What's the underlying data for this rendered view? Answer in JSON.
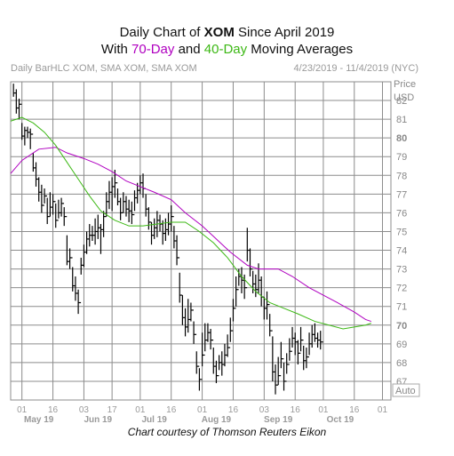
{
  "header": {
    "title_line1_prefix": "Daily Chart of ",
    "title_line1_ticker": "XOM",
    "title_line1_suffix": " Since April 2019",
    "title_line2_prefix": "With ",
    "title_line2_ma70": "70-Day",
    "title_line2_mid": " and ",
    "title_line2_ma40": "40-Day",
    "title_line2_suffix": " Moving Averages",
    "subtitle_left": "Daily BarHLC XOM, SMA XOM, SMA XOM",
    "subtitle_right": "4/23/2019 - 11/4/2019 (NYC)",
    "credit": "Chart courtesy of Thomson Reuters Eikon"
  },
  "colors": {
    "ma70": "#b000c0",
    "ma40": "#3cb814",
    "bars": "#000000",
    "grid": "#8c8c8c"
  },
  "chart_data": {
    "type": "line",
    "price_label": "Price",
    "currency_label": "USD",
    "auto_label": "Auto",
    "ylim": [
      66,
      83
    ],
    "y_ticks": [
      67,
      68,
      69,
      70,
      71,
      72,
      73,
      74,
      75,
      76,
      77,
      78,
      79,
      80,
      81,
      82
    ],
    "y_tick_bold": [
      80,
      70
    ],
    "x_day_ticks": [
      "01",
      "16",
      "03",
      "17",
      "01",
      "16",
      "01",
      "16",
      "03",
      "16",
      "01",
      "16",
      "01"
    ],
    "x_day_tick_positions": [
      4,
      15,
      26,
      36,
      46,
      57,
      68,
      79,
      90,
      101,
      111,
      122,
      132
    ],
    "x_month_labels": [
      "May 19",
      "Jun 19",
      "Jul 19",
      "Aug 19",
      "Sep 19",
      "Oct 19"
    ],
    "x_month_label_positions": [
      10,
      31,
      51,
      73,
      95,
      117
    ],
    "x_range": [
      0,
      135
    ],
    "ohlc_bars": [
      [
        82.2,
        82.9,
        82.4
      ],
      [
        81.3,
        82.6,
        81.6
      ],
      [
        81.0,
        82.1,
        81.8
      ],
      [
        79.9,
        80.8,
        80.1
      ],
      [
        79.6,
        80.6,
        80.4
      ],
      [
        80.0,
        80.6,
        80.3
      ],
      [
        79.4,
        80.5,
        80.2
      ],
      [
        78.2,
        79.2,
        78.4
      ],
      [
        77.4,
        78.7,
        77.8
      ],
      [
        76.6,
        77.9,
        77.1
      ],
      [
        76.0,
        77.5,
        76.4
      ],
      [
        76.5,
        77.3,
        76.9
      ],
      [
        75.4,
        76.8,
        75.8
      ],
      [
        75.8,
        77.1,
        76.3
      ],
      [
        75.9,
        77.0,
        76.6
      ],
      [
        75.2,
        76.5,
        75.6
      ],
      [
        75.7,
        76.7,
        76.0
      ],
      [
        75.8,
        76.8,
        76.5
      ],
      [
        75.3,
        76.3,
        75.8
      ],
      [
        73.2,
        74.8,
        73.4
      ],
      [
        73.0,
        74.1,
        73.6
      ],
      [
        71.8,
        73.1,
        72.1
      ],
      [
        71.3,
        72.6,
        71.7
      ],
      [
        70.6,
        71.9,
        71.2
      ],
      [
        72.7,
        73.6,
        73.2
      ],
      [
        73.1,
        74.3,
        73.9
      ],
      [
        73.8,
        75.0,
        74.6
      ],
      [
        74.2,
        75.4,
        74.8
      ],
      [
        74.5,
        75.3,
        74.8
      ],
      [
        74.3,
        75.7,
        75.0
      ],
      [
        74.6,
        75.9,
        75.2
      ],
      [
        73.8,
        75.4,
        75.1
      ],
      [
        74.7,
        76.1,
        75.8
      ],
      [
        75.8,
        77.1,
        76.6
      ],
      [
        76.2,
        77.7,
        77.1
      ],
      [
        76.1,
        77.9,
        77.4
      ],
      [
        76.8,
        78.3,
        77.6
      ],
      [
        76.4,
        77.3,
        76.6
      ],
      [
        75.6,
        76.8,
        76.0
      ],
      [
        76.0,
        77.1,
        76.6
      ],
      [
        75.8,
        76.9,
        76.2
      ],
      [
        75.5,
        76.7,
        76.1
      ],
      [
        75.4,
        76.6,
        75.9
      ],
      [
        76.1,
        77.2,
        76.8
      ],
      [
        76.5,
        77.6,
        77.2
      ],
      [
        77.0,
        78.0,
        77.6
      ],
      [
        76.8,
        78.1,
        77.3
      ],
      [
        75.8,
        77.0,
        76.2
      ],
      [
        75.1,
        76.3,
        75.5
      ],
      [
        74.3,
        75.5,
        74.8
      ],
      [
        74.6,
        75.7,
        75.2
      ],
      [
        74.7,
        76.1,
        75.6
      ],
      [
        75.0,
        75.9,
        75.4
      ],
      [
        74.3,
        75.6,
        74.9
      ],
      [
        74.5,
        75.7,
        75.1
      ],
      [
        74.8,
        76.0,
        75.4
      ],
      [
        75.0,
        76.4,
        75.8
      ],
      [
        74.1,
        75.3,
        74.5
      ],
      [
        73.2,
        74.8,
        73.6
      ],
      [
        71.2,
        72.8,
        71.6
      ],
      [
        70.0,
        71.6,
        70.4
      ],
      [
        69.4,
        70.9,
        69.9
      ],
      [
        69.6,
        71.4,
        70.3
      ],
      [
        70.2,
        71.2,
        70.8
      ],
      [
        69.0,
        70.2,
        69.5
      ],
      [
        67.4,
        68.6,
        67.8
      ],
      [
        66.5,
        67.7,
        67.1
      ],
      [
        67.8,
        69.6,
        68.4
      ],
      [
        68.6,
        70.1,
        69.2
      ],
      [
        69.1,
        70.1,
        69.6
      ],
      [
        68.7,
        69.8,
        69.2
      ],
      [
        67.4,
        68.8,
        67.8
      ],
      [
        66.9,
        68.1,
        67.3
      ],
      [
        67.6,
        68.4,
        68.0
      ],
      [
        67.3,
        68.6,
        67.9
      ],
      [
        67.8,
        69.0,
        68.4
      ],
      [
        68.3,
        69.5,
        68.8
      ],
      [
        69.1,
        70.4,
        69.7
      ],
      [
        70.2,
        71.4,
        70.9
      ],
      [
        71.0,
        72.6,
        71.9
      ],
      [
        72.1,
        73.0,
        72.6
      ],
      [
        71.7,
        73.1,
        72.4
      ],
      [
        71.4,
        72.7,
        72.0
      ],
      [
        73.4,
        75.2,
        74.0
      ],
      [
        72.6,
        74.1,
        73.0
      ],
      [
        71.7,
        72.9,
        72.2
      ],
      [
        71.5,
        72.7,
        71.9
      ],
      [
        71.7,
        73.3,
        72.4
      ],
      [
        71.0,
        72.6,
        71.5
      ],
      [
        70.3,
        71.5,
        70.9
      ],
      [
        70.3,
        71.8,
        71.1
      ],
      [
        69.4,
        70.6,
        69.7
      ],
      [
        67.0,
        69.4,
        67.5
      ],
      [
        66.3,
        67.9,
        66.8
      ],
      [
        66.8,
        68.3,
        67.3
      ],
      [
        67.7,
        69.1,
        68.2
      ],
      [
        66.5,
        68.0,
        67.0
      ],
      [
        67.4,
        68.5,
        67.9
      ],
      [
        68.1,
        69.3,
        68.6
      ],
      [
        68.8,
        69.9,
        69.3
      ],
      [
        68.4,
        69.6,
        69.1
      ],
      [
        67.9,
        69.2,
        68.5
      ],
      [
        68.6,
        69.9,
        69.2
      ],
      [
        67.6,
        68.9,
        68.1
      ],
      [
        67.7,
        68.8,
        68.3
      ],
      [
        68.4,
        69.6,
        69.0
      ],
      [
        68.8,
        70.0,
        69.5
      ],
      [
        69.1,
        70.1,
        69.3
      ],
      [
        68.8,
        69.6,
        69.2
      ],
      [
        68.7,
        69.7,
        69.1
      ]
    ],
    "ma70_points": [
      [
        0,
        78.1
      ],
      [
        4,
        78.8
      ],
      [
        10,
        79.4
      ],
      [
        16,
        79.5
      ],
      [
        20,
        79.2
      ],
      [
        26,
        78.9
      ],
      [
        31,
        78.6
      ],
      [
        36,
        78.2
      ],
      [
        41,
        77.7
      ],
      [
        46,
        77.4
      ],
      [
        51,
        77.1
      ],
      [
        57,
        76.7
      ],
      [
        62,
        76.0
      ],
      [
        68,
        75.3
      ],
      [
        73,
        74.6
      ],
      [
        78,
        73.9
      ],
      [
        84,
        73.2
      ],
      [
        88,
        73.0
      ],
      [
        95,
        73.0
      ],
      [
        100,
        72.6
      ],
      [
        106,
        72.0
      ],
      [
        111,
        71.6
      ],
      [
        116,
        71.2
      ],
      [
        122,
        70.7
      ],
      [
        126,
        70.3
      ],
      [
        128,
        70.2
      ]
    ],
    "ma40_points": [
      [
        0,
        80.9
      ],
      [
        4,
        81.1
      ],
      [
        8,
        80.8
      ],
      [
        12,
        80.3
      ],
      [
        16,
        79.6
      ],
      [
        20,
        78.7
      ],
      [
        24,
        77.8
      ],
      [
        28,
        76.9
      ],
      [
        32,
        76.1
      ],
      [
        37,
        75.6
      ],
      [
        42,
        75.3
      ],
      [
        47,
        75.3
      ],
      [
        52,
        75.4
      ],
      [
        57,
        75.5
      ],
      [
        62,
        75.5
      ],
      [
        67,
        75.0
      ],
      [
        72,
        74.4
      ],
      [
        77,
        73.6
      ],
      [
        82,
        72.6
      ],
      [
        87,
        71.8
      ],
      [
        92,
        71.2
      ],
      [
        97,
        70.9
      ],
      [
        102,
        70.6
      ],
      [
        108,
        70.2
      ],
      [
        113,
        70.0
      ],
      [
        118,
        69.8
      ],
      [
        122,
        69.9
      ],
      [
        126,
        70.0
      ],
      [
        128,
        70.1
      ]
    ]
  }
}
